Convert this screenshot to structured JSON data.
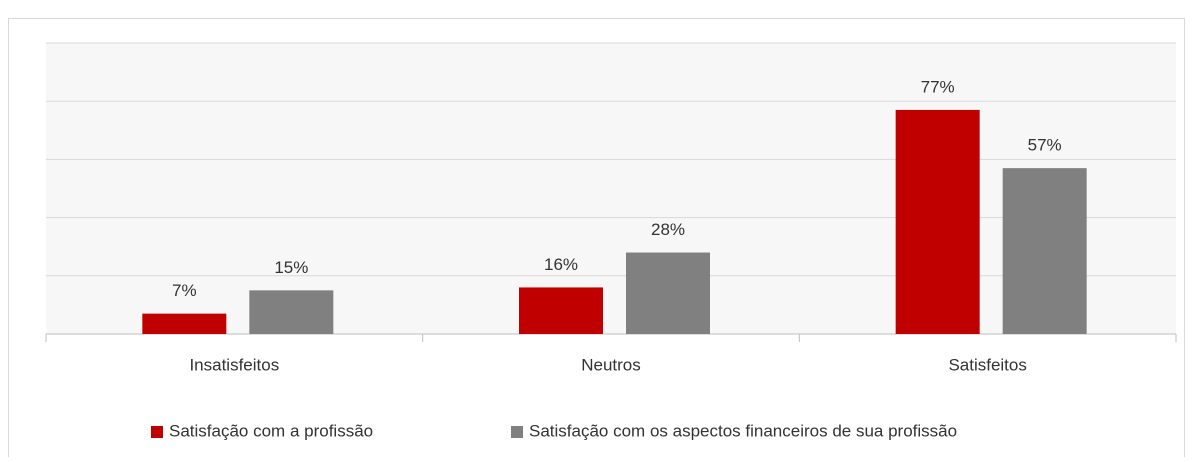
{
  "chart_data": {
    "type": "bar",
    "categories": [
      "Insatisfeitos",
      "Neutros",
      "Satisfeitos"
    ],
    "series": [
      {
        "name": "Satisfação com a profissão",
        "color": "#c00000",
        "values": [
          7,
          16,
          77
        ],
        "value_labels": [
          "7%",
          "16%",
          "77%"
        ]
      },
      {
        "name": "Satisfação com os aspectos financeiros de sua profissão",
        "color": "#808080",
        "values": [
          15,
          28,
          57
        ],
        "value_labels": [
          "15%",
          "28%",
          "57%"
        ]
      }
    ],
    "ylim": [
      0,
      100
    ],
    "yticks": [
      0,
      20,
      40,
      60,
      80,
      100
    ],
    "grid": true,
    "legend": "bottom"
  }
}
